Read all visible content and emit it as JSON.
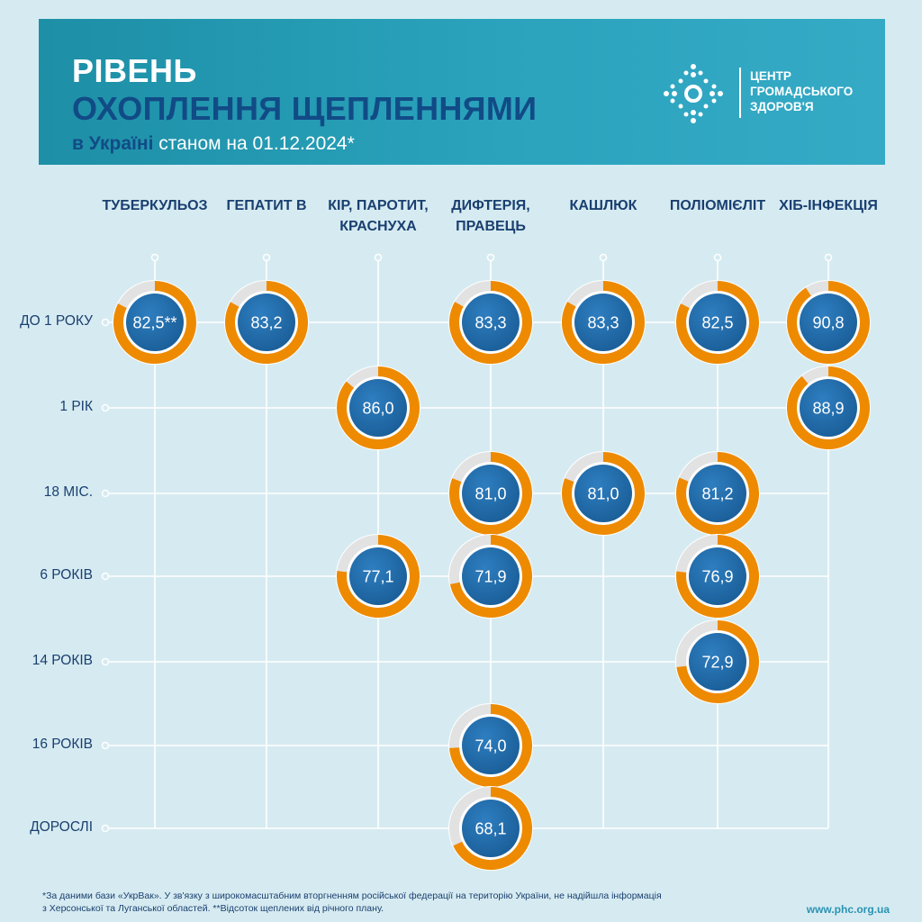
{
  "header": {
    "title_line1": "РІВЕНЬ",
    "title_line2": "ОХОПЛЕННЯ ЩЕПЛЕННЯМИ",
    "subtitle_bold": "в Україні",
    "subtitle_rest": " станом на 01.12.2024*",
    "logo_lines": [
      "ЦЕНТР",
      "ГРОМАДСЬКОГО",
      "ЗДОРОВ'Я"
    ]
  },
  "footnote": {
    "line1": "*За даними бази «УкрВак».  У зв'язку з широкомасштабним вторгненням російської федерації  на територію України, не надійшла інформація",
    "line2": "з Херсонської та Луганської областей.   **Відсоток щеплених від річного плану."
  },
  "url": "www.phc.org.ua",
  "colors": {
    "background": "#d6ebf1",
    "banner": "#2ba3bd",
    "ring": "#ee8a00",
    "track": "#e2e2e2",
    "bubble": "#1a5e98",
    "text": "#1a3f70"
  },
  "chart_data": {
    "type": "bubble-matrix",
    "unit": "%",
    "columns": [
      [
        "ТУБЕРКУЛЬОЗ"
      ],
      [
        "ГЕПАТИТ В"
      ],
      [
        "КІР, ПАРОТИТ,",
        "КРАСНУХА"
      ],
      [
        "ДИФТЕРІЯ,",
        "ПРАВЕЦЬ"
      ],
      [
        "КАШЛЮК"
      ],
      [
        "ПОЛІОМІЄЛІТ"
      ],
      [
        "ХІБ-ІНФЕКЦІЯ"
      ]
    ],
    "rows": [
      "ДО 1 РОКУ",
      "1 РІК",
      "18 МІС.",
      "6 РОКІВ",
      "14 РОКІВ",
      "16 РОКІВ",
      "ДОРОСЛІ"
    ],
    "cells": [
      {
        "row": 0,
        "col": 0,
        "value": 82.5,
        "label": "82,5**"
      },
      {
        "row": 0,
        "col": 1,
        "value": 83.2,
        "label": "83,2"
      },
      {
        "row": 0,
        "col": 3,
        "value": 83.3,
        "label": "83,3"
      },
      {
        "row": 0,
        "col": 4,
        "value": 83.3,
        "label": "83,3"
      },
      {
        "row": 0,
        "col": 5,
        "value": 82.5,
        "label": "82,5"
      },
      {
        "row": 0,
        "col": 6,
        "value": 90.8,
        "label": "90,8"
      },
      {
        "row": 1,
        "col": 2,
        "value": 86.0,
        "label": "86,0"
      },
      {
        "row": 1,
        "col": 6,
        "value": 88.9,
        "label": "88,9"
      },
      {
        "row": 2,
        "col": 3,
        "value": 81.0,
        "label": "81,0"
      },
      {
        "row": 2,
        "col": 4,
        "value": 81.0,
        "label": "81,0"
      },
      {
        "row": 2,
        "col": 5,
        "value": 81.2,
        "label": "81,2"
      },
      {
        "row": 3,
        "col": 2,
        "value": 77.1,
        "label": "77,1"
      },
      {
        "row": 3,
        "col": 3,
        "value": 71.9,
        "label": "71,9"
      },
      {
        "row": 3,
        "col": 5,
        "value": 76.9,
        "label": "76,9"
      },
      {
        "row": 4,
        "col": 5,
        "value": 72.9,
        "label": "72,9"
      },
      {
        "row": 5,
        "col": 3,
        "value": 74.0,
        "label": "74,0"
      },
      {
        "row": 6,
        "col": 3,
        "value": 68.1,
        "label": "68,1"
      }
    ]
  }
}
